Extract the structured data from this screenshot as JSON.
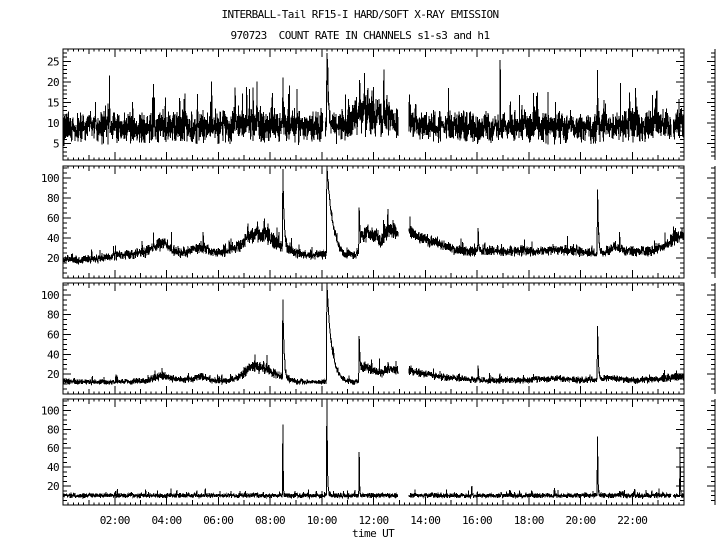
{
  "chart_data": {
    "type": "line",
    "title": "INTERBALL-Tail RF15-I HARD/SOFT X-RAY EMISSION",
    "subtitle": "970723  COUNT RATE IN CHANNELS s1-s3 and h1",
    "xlabel": "time UT",
    "date_yymmdd": "970723",
    "x_range_hours": [
      0,
      24
    ],
    "x_tick_hours": [
      2,
      4,
      6,
      8,
      10,
      12,
      14,
      16,
      18,
      20,
      22
    ],
    "x_tick_labels": [
      "02:00",
      "04:00",
      "06:00",
      "08:00",
      "10:00",
      "12:00",
      "14:00",
      "16:00",
      "18:00",
      "20:00",
      "22:00"
    ],
    "x_minor_tick_hours": 0.2,
    "grid": false,
    "legend": "none",
    "colors": {
      "foreground": "#000000",
      "background": "#ffffff"
    },
    "panels": [
      {
        "channel": "s1",
        "ylim": [
          1,
          28
        ],
        "yticks": [
          5,
          10,
          15,
          20,
          25
        ],
        "y_minor_step": 1,
        "baseline": [
          [
            0,
            8.5,
            4.5
          ],
          [
            1,
            9,
            4.5
          ],
          [
            5,
            9,
            4.5
          ],
          [
            6.8,
            9.5,
            5
          ],
          [
            8.2,
            9.5,
            5
          ],
          [
            9.2,
            9,
            4.5
          ],
          [
            10.9,
            9.5,
            5
          ],
          [
            11.3,
            11,
            5.5
          ],
          [
            12,
            11.5,
            5.5
          ],
          [
            12.95,
            11.5,
            5.5
          ],
          [
            13.4,
            10.5,
            5
          ],
          [
            14.2,
            9.5,
            4.5
          ],
          [
            16,
            9,
            4.5
          ],
          [
            20,
            9,
            4.5
          ],
          [
            24,
            9.5,
            4.5
          ]
        ],
        "spikes": [
          [
            1.8,
            18,
            0.006
          ],
          [
            3.5,
            20.5,
            0.006
          ],
          [
            5.2,
            18,
            0.005
          ],
          [
            7.1,
            19.5,
            0.006
          ],
          [
            7.5,
            20,
            0.005
          ],
          [
            8.5,
            20,
            0.008
          ],
          [
            10.2,
            28,
            0.05
          ],
          [
            11.65,
            22.5,
            0.006
          ],
          [
            12.4,
            23,
            0.006
          ],
          [
            14.9,
            18,
            0.005
          ],
          [
            16.9,
            19,
            0.005
          ],
          [
            18.3,
            18,
            0.005
          ],
          [
            20.66,
            21,
            0.012
          ],
          [
            21.9,
            17.5,
            0.005
          ],
          [
            22.9,
            17,
            0.005
          ]
        ],
        "gaps": [
          [
            10.05,
            10.15
          ],
          [
            12.95,
            13.37
          ],
          [
            23.5,
            23.58
          ]
        ]
      },
      {
        "channel": "s2",
        "ylim": [
          0,
          112
        ],
        "yticks": [
          20,
          40,
          60,
          80,
          100
        ],
        "y_minor_step": 5,
        "baseline": [
          [
            0,
            20,
            5
          ],
          [
            0.5,
            18,
            5
          ],
          [
            1.2,
            19,
            5
          ],
          [
            2,
            22,
            6
          ],
          [
            2.6,
            24,
            6
          ],
          [
            3.2,
            26,
            6
          ],
          [
            3.75,
            34,
            8
          ],
          [
            3.95,
            35,
            8
          ],
          [
            4.2,
            28,
            7
          ],
          [
            4.6,
            25,
            6
          ],
          [
            5.1,
            28,
            7
          ],
          [
            5.4,
            32,
            7
          ],
          [
            5.7,
            27,
            6
          ],
          [
            6.1,
            26,
            6
          ],
          [
            6.5,
            29,
            7
          ],
          [
            6.9,
            33,
            8
          ],
          [
            7.2,
            42,
            9
          ],
          [
            7.45,
            45,
            10
          ],
          [
            7.65,
            43,
            10
          ],
          [
            7.85,
            45,
            10
          ],
          [
            8.1,
            38,
            9
          ],
          [
            8.35,
            32,
            8
          ],
          [
            8.6,
            29,
            7
          ],
          [
            9,
            25,
            6
          ],
          [
            9.5,
            23,
            5
          ],
          [
            10,
            23,
            5
          ],
          [
            10.45,
            23,
            5
          ],
          [
            10.8,
            20,
            5
          ],
          [
            11.15,
            22,
            5
          ],
          [
            11.4,
            24,
            6
          ],
          [
            11.55,
            42,
            9
          ],
          [
            11.8,
            46,
            10
          ],
          [
            12.05,
            41,
            9
          ],
          [
            12.3,
            38,
            9
          ],
          [
            12.55,
            48,
            10
          ],
          [
            12.8,
            46,
            10
          ],
          [
            12.95,
            44,
            9
          ],
          [
            13.37,
            46,
            9
          ],
          [
            13.8,
            42,
            8
          ],
          [
            14.2,
            37,
            8
          ],
          [
            14.7,
            32,
            7
          ],
          [
            15.2,
            28,
            6
          ],
          [
            15.7,
            26,
            6
          ],
          [
            16.3,
            28,
            6
          ],
          [
            17,
            26,
            6
          ],
          [
            17.6,
            28,
            6
          ],
          [
            18.2,
            26,
            6
          ],
          [
            18.9,
            28,
            6
          ],
          [
            19.5,
            28,
            6
          ],
          [
            20.1,
            26,
            6
          ],
          [
            20.6,
            24,
            5
          ],
          [
            21.05,
            27,
            6
          ],
          [
            21.35,
            32,
            7
          ],
          [
            21.7,
            27,
            6
          ],
          [
            22.3,
            26,
            6
          ],
          [
            22.9,
            28,
            6
          ],
          [
            23.3,
            33,
            7
          ],
          [
            23.7,
            41,
            8
          ],
          [
            24,
            43,
            8
          ]
        ],
        "spikes": [
          [
            8.5,
            105,
            0.05
          ],
          [
            10.2,
            113,
            0.22
          ],
          [
            11.45,
            70,
            0.03
          ],
          [
            16.05,
            48,
            0.012
          ],
          [
            20.66,
            90,
            0.035
          ]
        ],
        "gaps": [
          [
            12.95,
            13.37
          ]
        ]
      },
      {
        "channel": "s3",
        "ylim": [
          0,
          112
        ],
        "yticks": [
          20,
          40,
          60,
          80,
          100
        ],
        "y_minor_step": 5,
        "baseline": [
          [
            0,
            13,
            4
          ],
          [
            0.6,
            12,
            3
          ],
          [
            1.5,
            12,
            3
          ],
          [
            2.5,
            12.5,
            3.5
          ],
          [
            3.2,
            13,
            4
          ],
          [
            3.75,
            18,
            5
          ],
          [
            3.95,
            19,
            5
          ],
          [
            4.2,
            15,
            4
          ],
          [
            4.7,
            14,
            4
          ],
          [
            5.1,
            16,
            4
          ],
          [
            5.4,
            18,
            5
          ],
          [
            5.7,
            14,
            4
          ],
          [
            6.2,
            13,
            3.5
          ],
          [
            6.6,
            15,
            4
          ],
          [
            6.9,
            19,
            5
          ],
          [
            7.2,
            26,
            7
          ],
          [
            7.45,
            28,
            7
          ],
          [
            7.65,
            26,
            7
          ],
          [
            7.85,
            27,
            7
          ],
          [
            8.1,
            22,
            6
          ],
          [
            8.35,
            18,
            5
          ],
          [
            8.6,
            15,
            4
          ],
          [
            9,
            13,
            3.5
          ],
          [
            9.6,
            12,
            3
          ],
          [
            10.1,
            12,
            3
          ],
          [
            10.45,
            14,
            4
          ],
          [
            10.8,
            12,
            3
          ],
          [
            11.2,
            12,
            3
          ],
          [
            11.4,
            13,
            3.5
          ],
          [
            11.55,
            26,
            7
          ],
          [
            11.8,
            27,
            7
          ],
          [
            12.05,
            23,
            6
          ],
          [
            12.3,
            21,
            6
          ],
          [
            12.55,
            26,
            7
          ],
          [
            12.8,
            24,
            6
          ],
          [
            12.95,
            23,
            6
          ],
          [
            13.37,
            24,
            6
          ],
          [
            13.9,
            21,
            5
          ],
          [
            14.4,
            18,
            5
          ],
          [
            15,
            16,
            4
          ],
          [
            15.6,
            15,
            4
          ],
          [
            16.2,
            14,
            4
          ],
          [
            17,
            14,
            4
          ],
          [
            17.8,
            14,
            4
          ],
          [
            18.5,
            15,
            4
          ],
          [
            19.2,
            16,
            4
          ],
          [
            19.8,
            14,
            4
          ],
          [
            20.4,
            14,
            4
          ],
          [
            21,
            16,
            4
          ],
          [
            21.3,
            16,
            4
          ],
          [
            21.8,
            14,
            4
          ],
          [
            22.5,
            14,
            4
          ],
          [
            23,
            15,
            4
          ],
          [
            23.5,
            17,
            5
          ],
          [
            24,
            18,
            5
          ]
        ],
        "spikes": [
          [
            8.5,
            95,
            0.045
          ],
          [
            10.2,
            112,
            0.18
          ],
          [
            11.45,
            58,
            0.03
          ],
          [
            16.05,
            27,
            0.01
          ],
          [
            20.66,
            68,
            0.03
          ]
        ],
        "gaps": [
          [
            12.95,
            13.37
          ]
        ]
      },
      {
        "channel": "h1",
        "ylim": [
          0,
          112
        ],
        "yticks": [
          20,
          40,
          60,
          80,
          100
        ],
        "y_minor_step": 5,
        "baseline": [
          [
            0,
            10,
            3
          ],
          [
            6,
            10,
            3
          ],
          [
            12,
            10,
            3
          ],
          [
            18,
            10,
            3
          ],
          [
            24,
            10,
            3
          ]
        ],
        "spikes": [
          [
            2.1,
            16,
            0.006
          ],
          [
            5.5,
            17,
            0.006
          ],
          [
            8.5,
            84,
            0.012
          ],
          [
            10.2,
            113,
            0.02
          ],
          [
            11.45,
            56,
            0.012
          ],
          [
            13.6,
            16,
            0.006
          ],
          [
            15.8,
            21,
            0.008
          ],
          [
            17.3,
            16,
            0.005
          ],
          [
            19,
            16,
            0.005
          ],
          [
            20.66,
            73,
            0.015
          ],
          [
            22.1,
            16,
            0.005
          ],
          [
            23.85,
            60,
            0.01
          ]
        ],
        "gaps": [
          [
            12.95,
            13.37
          ],
          [
            23.5,
            23.58
          ]
        ]
      }
    ]
  }
}
